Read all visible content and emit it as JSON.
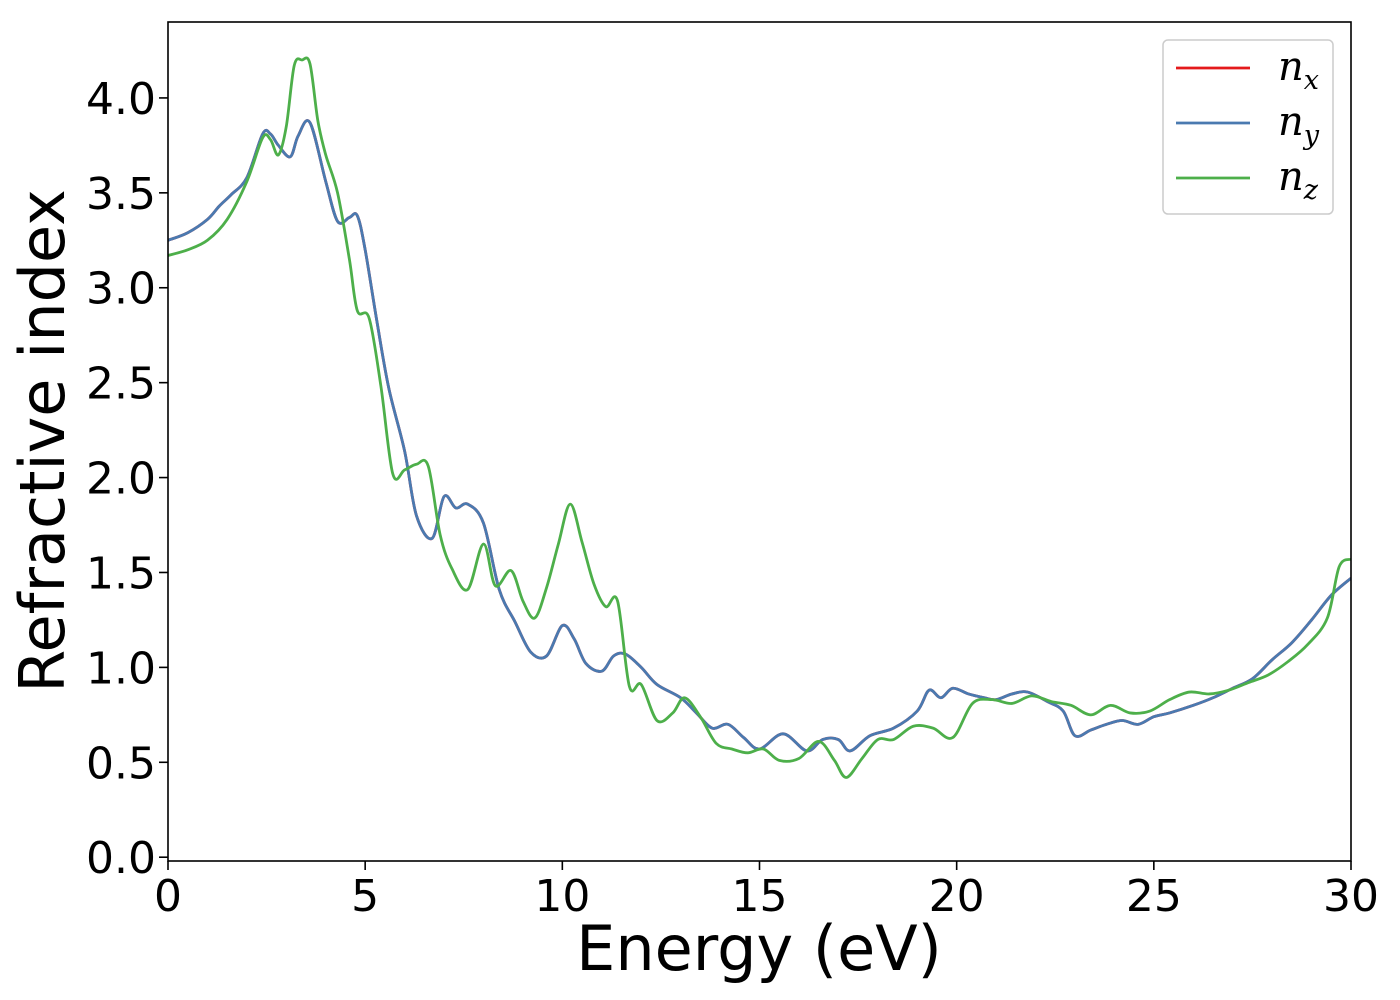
{
  "chart_data": {
    "type": "line",
    "xlabel": "Energy (eV)",
    "ylabel": "Refractive index",
    "xlim": [
      0,
      30
    ],
    "ylim": [
      -0.02,
      4.4
    ],
    "xticks": [
      0,
      5,
      10,
      15,
      20,
      25,
      30
    ],
    "xtick_labels": [
      "0",
      "5",
      "10",
      "15",
      "20",
      "25",
      "30"
    ],
    "yticks": [
      0.0,
      0.5,
      1.0,
      1.5,
      2.0,
      2.5,
      3.0,
      3.5,
      4.0
    ],
    "ytick_labels": [
      "0.0",
      "0.5",
      "1.0",
      "1.5",
      "2.0",
      "2.5",
      "3.0",
      "3.5",
      "4.0"
    ],
    "grid": false,
    "legend_position": "top-right",
    "series": [
      {
        "name": "n_x",
        "legend_base": "n",
        "legend_sub": "x",
        "color": "#e41a1c",
        "x": [
          0,
          0.5,
          1,
          1.3,
          1.6,
          2,
          2.4,
          2.6,
          2.8,
          3.1,
          3.3,
          3.6,
          4,
          4.3,
          4.6,
          4.8,
          5,
          5.3,
          5.6,
          6,
          6.3,
          6.7,
          7,
          7.3,
          7.6,
          8,
          8.4,
          8.8,
          9.2,
          9.6,
          10,
          10.3,
          10.6,
          11,
          11.3,
          11.6,
          12,
          12.4,
          13,
          13.4,
          13.8,
          14.2,
          14.6,
          15,
          15.6,
          16.2,
          16.6,
          17,
          17.3,
          17.8,
          18.4,
          19,
          19.3,
          19.6,
          19.9,
          20.3,
          20.7,
          21,
          21.4,
          21.8,
          22.3,
          22.7,
          23,
          23.4,
          23.8,
          24.2,
          24.6,
          25,
          25.4,
          26,
          26.5,
          27,
          27.5,
          28,
          28.5,
          29,
          29.5,
          30
        ],
        "y": [
          3.25,
          3.29,
          3.36,
          3.43,
          3.49,
          3.58,
          3.81,
          3.81,
          3.75,
          3.69,
          3.8,
          3.87,
          3.56,
          3.35,
          3.37,
          3.38,
          3.2,
          2.82,
          2.47,
          2.14,
          1.8,
          1.68,
          1.9,
          1.84,
          1.86,
          1.76,
          1.41,
          1.24,
          1.08,
          1.06,
          1.22,
          1.15,
          1.02,
          0.98,
          1.06,
          1.07,
          1.0,
          0.91,
          0.84,
          0.76,
          0.68,
          0.7,
          0.63,
          0.57,
          0.65,
          0.56,
          0.62,
          0.62,
          0.56,
          0.64,
          0.68,
          0.77,
          0.88,
          0.84,
          0.89,
          0.86,
          0.84,
          0.83,
          0.86,
          0.87,
          0.82,
          0.77,
          0.64,
          0.67,
          0.7,
          0.72,
          0.7,
          0.74,
          0.76,
          0.8,
          0.84,
          0.89,
          0.94,
          1.04,
          1.13,
          1.25,
          1.38,
          1.47
        ]
      },
      {
        "name": "n_y",
        "legend_base": "n",
        "legend_sub": "y",
        "color": "#4a7ab0",
        "x": [
          0,
          0.5,
          1,
          1.3,
          1.6,
          2,
          2.4,
          2.6,
          2.8,
          3.1,
          3.3,
          3.6,
          4,
          4.3,
          4.6,
          4.8,
          5,
          5.3,
          5.6,
          6,
          6.3,
          6.7,
          7,
          7.3,
          7.6,
          8,
          8.4,
          8.8,
          9.2,
          9.6,
          10,
          10.3,
          10.6,
          11,
          11.3,
          11.6,
          12,
          12.4,
          13,
          13.4,
          13.8,
          14.2,
          14.6,
          15,
          15.6,
          16.2,
          16.6,
          17,
          17.3,
          17.8,
          18.4,
          19,
          19.3,
          19.6,
          19.9,
          20.3,
          20.7,
          21,
          21.4,
          21.8,
          22.3,
          22.7,
          23,
          23.4,
          23.8,
          24.2,
          24.6,
          25,
          25.4,
          26,
          26.5,
          27,
          27.5,
          28,
          28.5,
          29,
          29.5,
          30
        ],
        "y": [
          3.25,
          3.29,
          3.36,
          3.43,
          3.49,
          3.58,
          3.81,
          3.81,
          3.75,
          3.69,
          3.8,
          3.87,
          3.56,
          3.35,
          3.37,
          3.38,
          3.2,
          2.82,
          2.47,
          2.14,
          1.8,
          1.68,
          1.9,
          1.84,
          1.86,
          1.76,
          1.41,
          1.24,
          1.08,
          1.06,
          1.22,
          1.15,
          1.02,
          0.98,
          1.06,
          1.07,
          1.0,
          0.91,
          0.84,
          0.76,
          0.68,
          0.7,
          0.63,
          0.57,
          0.65,
          0.56,
          0.62,
          0.62,
          0.56,
          0.64,
          0.68,
          0.77,
          0.88,
          0.84,
          0.89,
          0.86,
          0.84,
          0.83,
          0.86,
          0.87,
          0.82,
          0.77,
          0.64,
          0.67,
          0.7,
          0.72,
          0.7,
          0.74,
          0.76,
          0.8,
          0.84,
          0.89,
          0.94,
          1.04,
          1.13,
          1.25,
          1.38,
          1.47
        ]
      },
      {
        "name": "n_z",
        "legend_base": "n",
        "legend_sub": "z",
        "color": "#4daf4a",
        "x": [
          0,
          0.5,
          1,
          1.5,
          2,
          2.4,
          2.6,
          2.8,
          3,
          3.2,
          3.4,
          3.6,
          3.8,
          4,
          4.3,
          4.6,
          4.8,
          5.1,
          5.4,
          5.7,
          6,
          6.3,
          6.6,
          6.9,
          7.2,
          7.6,
          8,
          8.3,
          8.7,
          9,
          9.3,
          9.6,
          9.9,
          10.2,
          10.5,
          10.8,
          11.1,
          11.4,
          11.7,
          12,
          12.4,
          12.8,
          13.1,
          13.5,
          13.9,
          14.3,
          14.7,
          15.1,
          15.5,
          16,
          16.5,
          16.9,
          17.2,
          17.6,
          18,
          18.4,
          18.9,
          19.4,
          19.9,
          20.4,
          20.9,
          21.4,
          21.9,
          22.4,
          22.9,
          23.4,
          23.9,
          24.4,
          24.9,
          25.4,
          25.9,
          26.4,
          26.9,
          27.4,
          27.9,
          28.4,
          28.9,
          29.4,
          29.7,
          30
        ],
        "y": [
          3.17,
          3.2,
          3.25,
          3.36,
          3.56,
          3.79,
          3.78,
          3.7,
          3.85,
          4.17,
          4.2,
          4.18,
          3.88,
          3.7,
          3.5,
          3.15,
          2.88,
          2.84,
          2.48,
          2.02,
          2.04,
          2.07,
          2.06,
          1.7,
          1.52,
          1.41,
          1.65,
          1.43,
          1.51,
          1.35,
          1.26,
          1.42,
          1.65,
          1.86,
          1.66,
          1.44,
          1.32,
          1.35,
          0.9,
          0.91,
          0.72,
          0.76,
          0.84,
          0.74,
          0.6,
          0.57,
          0.55,
          0.57,
          0.51,
          0.52,
          0.61,
          0.51,
          0.42,
          0.52,
          0.62,
          0.62,
          0.69,
          0.68,
          0.63,
          0.81,
          0.83,
          0.81,
          0.85,
          0.82,
          0.8,
          0.75,
          0.8,
          0.76,
          0.77,
          0.83,
          0.87,
          0.86,
          0.88,
          0.92,
          0.96,
          1.03,
          1.12,
          1.26,
          1.53,
          1.57
        ]
      }
    ]
  }
}
